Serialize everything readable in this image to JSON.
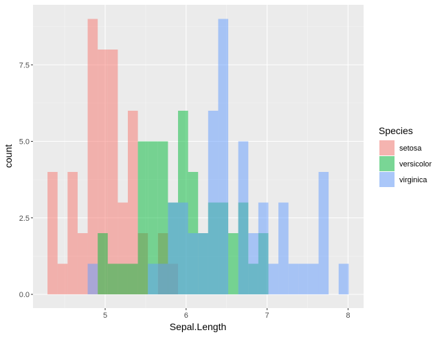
{
  "chart_data": {
    "type": "bar",
    "subtype": "histogram-overlay",
    "title": "",
    "xlabel": "Sepal.Length",
    "ylabel": "count",
    "xlim": [
      4.12,
      8.18
    ],
    "ylim": [
      -0.45,
      9.45
    ],
    "x_ticks": [
      5,
      6,
      7,
      8
    ],
    "x_tick_labels": [
      "5",
      "6",
      "7",
      "8"
    ],
    "y_ticks": [
      0,
      2.5,
      5,
      7.5
    ],
    "y_tick_labels": [
      "0.0",
      "2.5",
      "5.0",
      "7.5"
    ],
    "grid": true,
    "bins": 30,
    "bin_start": 4.288,
    "bin_width": 0.124,
    "opacity": 0.5,
    "legend": {
      "title": "Species",
      "position": "right",
      "entries": [
        "setosa",
        "versicolor",
        "virginica"
      ]
    },
    "series": [
      {
        "name": "setosa",
        "color": "#F8766D",
        "values": [
          4,
          1,
          4,
          2,
          9,
          8,
          8,
          3,
          6,
          2,
          0,
          2,
          1,
          0,
          0,
          0,
          0,
          0,
          0,
          0,
          0,
          0,
          0,
          0,
          0,
          0,
          0,
          0,
          0,
          0
        ]
      },
      {
        "name": "versicolor",
        "color": "#00BA38",
        "values": [
          0,
          0,
          0,
          0,
          0,
          2,
          1,
          1,
          1,
          5,
          5,
          5,
          3,
          6,
          4,
          2,
          3,
          3,
          2,
          3,
          1,
          2,
          0,
          0,
          0,
          0,
          0,
          0,
          0,
          0
        ]
      },
      {
        "name": "virginica",
        "color": "#619CFF",
        "values": [
          0,
          0,
          0,
          0,
          1,
          0,
          0,
          0,
          0,
          0,
          1,
          1,
          3,
          3,
          2,
          2,
          6,
          9,
          0,
          5,
          2,
          3,
          1,
          3,
          1,
          1,
          1,
          4,
          0,
          1
        ]
      }
    ]
  }
}
